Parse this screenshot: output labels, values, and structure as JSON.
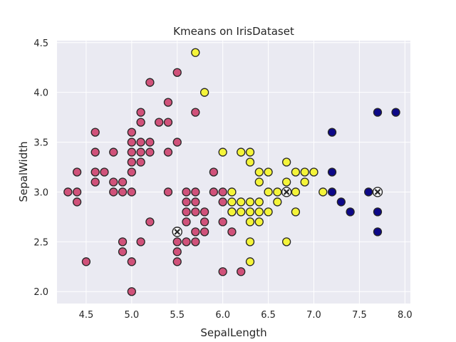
{
  "colors": {
    "cluster_0": "#d0527a",
    "cluster_1": "#f4f43a",
    "cluster_2": "#0d0887",
    "centroid_fill": "#ffffff",
    "centroid_edge": "#262626"
  },
  "chart_data": {
    "type": "scatter",
    "title": "Kmeans on IrisDataset",
    "xlabel": "SepalLength",
    "ylabel": "SepalWidth",
    "xlim": [
      4.18,
      8.06
    ],
    "ylim": [
      1.88,
      4.52
    ],
    "xticks": [
      4.5,
      5.0,
      5.5,
      6.0,
      6.5,
      7.0,
      7.5,
      8.0
    ],
    "xtick_labels": [
      "4.5",
      "5.0",
      "5.5",
      "6.0",
      "6.5",
      "7.0",
      "7.5",
      "8.0"
    ],
    "yticks": [
      2.0,
      2.5,
      3.0,
      3.5,
      4.0,
      4.5
    ],
    "ytick_labels": [
      "2.0",
      "2.5",
      "3.0",
      "3.5",
      "4.0",
      "4.5"
    ],
    "grid": true,
    "series": [
      {
        "color": "#d0527a",
        "points": [
          [
            4.3,
            3.0
          ],
          [
            4.4,
            3.2
          ],
          [
            4.4,
            3.0
          ],
          [
            4.4,
            2.9
          ],
          [
            4.5,
            2.3
          ],
          [
            4.6,
            3.6
          ],
          [
            4.6,
            3.4
          ],
          [
            4.6,
            3.2
          ],
          [
            4.6,
            3.1
          ],
          [
            4.7,
            3.2
          ],
          [
            4.8,
            3.4
          ],
          [
            4.8,
            3.1
          ],
          [
            4.8,
            3.0
          ],
          [
            4.9,
            3.1
          ],
          [
            4.9,
            3.0
          ],
          [
            4.9,
            2.5
          ],
          [
            4.9,
            2.4
          ],
          [
            5.0,
            3.6
          ],
          [
            5.0,
            3.5
          ],
          [
            5.0,
            3.4
          ],
          [
            5.0,
            3.3
          ],
          [
            5.0,
            3.2
          ],
          [
            5.0,
            3.0
          ],
          [
            5.0,
            2.3
          ],
          [
            5.0,
            2.0
          ],
          [
            5.1,
            3.8
          ],
          [
            5.1,
            3.7
          ],
          [
            5.1,
            3.5
          ],
          [
            5.1,
            3.4
          ],
          [
            5.1,
            3.3
          ],
          [
            5.1,
            2.5
          ],
          [
            5.2,
            4.1
          ],
          [
            5.2,
            3.5
          ],
          [
            5.2,
            3.4
          ],
          [
            5.2,
            2.7
          ],
          [
            5.3,
            3.7
          ],
          [
            5.4,
            3.9
          ],
          [
            5.4,
            3.7
          ],
          [
            5.4,
            3.4
          ],
          [
            5.4,
            3.0
          ],
          [
            5.5,
            4.2
          ],
          [
            5.5,
            3.5
          ],
          [
            5.5,
            2.5
          ],
          [
            5.5,
            2.4
          ],
          [
            5.5,
            2.3
          ],
          [
            5.6,
            3.0
          ],
          [
            5.6,
            2.9
          ],
          [
            5.6,
            2.8
          ],
          [
            5.6,
            2.7
          ],
          [
            5.6,
            2.5
          ],
          [
            5.7,
            3.8
          ],
          [
            5.7,
            3.0
          ],
          [
            5.7,
            2.9
          ],
          [
            5.7,
            2.8
          ],
          [
            5.7,
            2.6
          ],
          [
            5.7,
            2.5
          ],
          [
            5.8,
            2.8
          ],
          [
            5.8,
            2.7
          ],
          [
            5.8,
            2.6
          ],
          [
            5.9,
            3.2
          ],
          [
            5.9,
            3.0
          ],
          [
            6.0,
            3.0
          ],
          [
            6.0,
            2.9
          ],
          [
            6.0,
            2.7
          ],
          [
            6.0,
            2.2
          ],
          [
            6.1,
            2.8
          ],
          [
            6.1,
            2.6
          ],
          [
            6.2,
            2.2
          ]
        ]
      },
      {
        "color": "#f4f43a",
        "points": [
          [
            5.7,
            4.4
          ],
          [
            5.8,
            4.0
          ],
          [
            6.0,
            3.4
          ],
          [
            6.1,
            3.0
          ],
          [
            6.1,
            2.9
          ],
          [
            6.1,
            2.8
          ],
          [
            6.2,
            3.4
          ],
          [
            6.2,
            2.9
          ],
          [
            6.2,
            2.8
          ],
          [
            6.3,
            3.4
          ],
          [
            6.3,
            3.3
          ],
          [
            6.3,
            2.9
          ],
          [
            6.3,
            2.8
          ],
          [
            6.3,
            2.7
          ],
          [
            6.3,
            2.5
          ],
          [
            6.3,
            2.3
          ],
          [
            6.4,
            3.2
          ],
          [
            6.4,
            3.1
          ],
          [
            6.4,
            2.9
          ],
          [
            6.4,
            2.8
          ],
          [
            6.4,
            2.7
          ],
          [
            6.5,
            3.2
          ],
          [
            6.5,
            3.0
          ],
          [
            6.5,
            2.8
          ],
          [
            6.6,
            3.0
          ],
          [
            6.6,
            2.9
          ],
          [
            6.7,
            3.3
          ],
          [
            6.7,
            3.1
          ],
          [
            6.7,
            3.0
          ],
          [
            6.7,
            2.5
          ],
          [
            6.8,
            3.2
          ],
          [
            6.8,
            3.0
          ],
          [
            6.8,
            2.8
          ],
          [
            6.9,
            3.2
          ],
          [
            6.9,
            3.1
          ],
          [
            7.0,
            3.2
          ],
          [
            7.1,
            3.0
          ]
        ]
      },
      {
        "color": "#0d0887",
        "points": [
          [
            7.2,
            3.6
          ],
          [
            7.2,
            3.2
          ],
          [
            7.2,
            3.0
          ],
          [
            7.3,
            2.9
          ],
          [
            7.4,
            2.8
          ],
          [
            7.6,
            3.0
          ],
          [
            7.7,
            3.8
          ],
          [
            7.7,
            3.0
          ],
          [
            7.7,
            2.8
          ],
          [
            7.7,
            2.6
          ],
          [
            7.9,
            3.8
          ]
        ]
      }
    ],
    "centroids": [
      [
        5.5,
        2.6
      ],
      [
        6.7,
        3.0
      ],
      [
        7.7,
        3.0
      ]
    ]
  }
}
